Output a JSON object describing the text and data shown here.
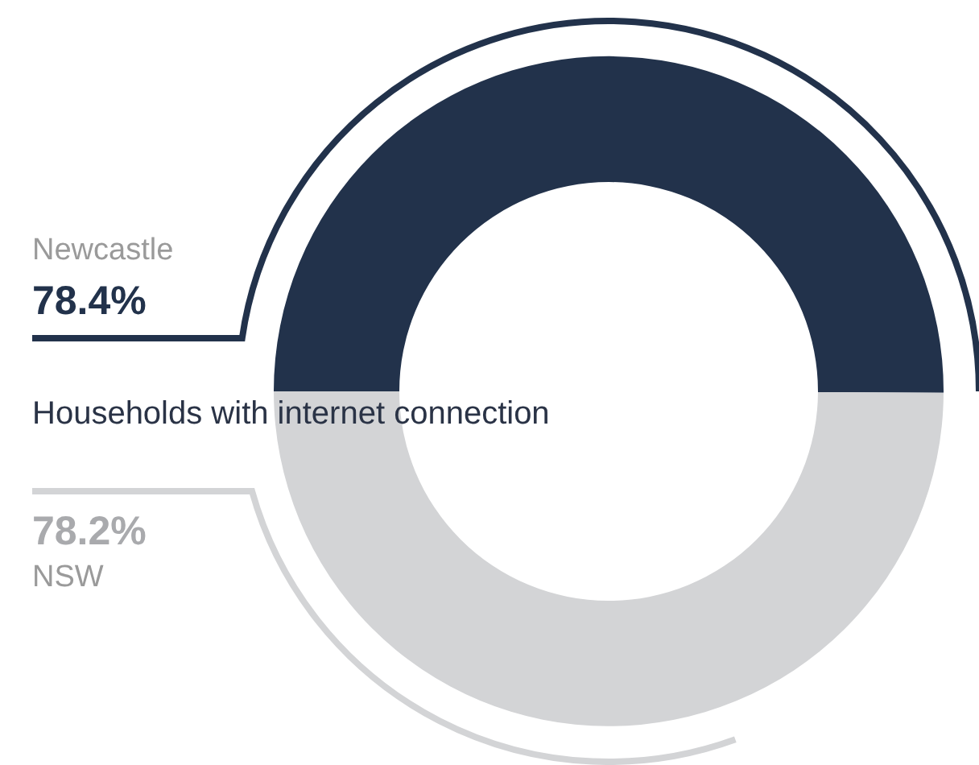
{
  "chart_data": {
    "type": "donut",
    "title": "Households with internet connection",
    "categories": [
      "Newcastle",
      "NSW"
    ],
    "values": [
      78.4,
      78.2
    ],
    "value_labels": [
      "78.4%",
      "78.2%"
    ],
    "colors": [
      "#22324b",
      "#d3d4d6"
    ]
  }
}
